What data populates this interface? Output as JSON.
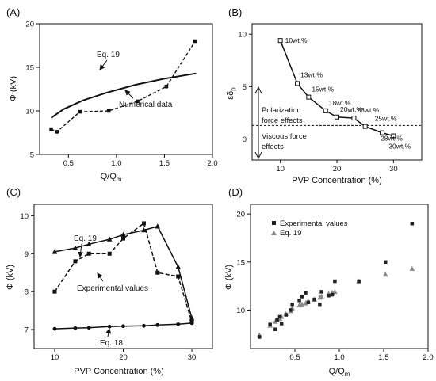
{
  "chart_data": [
    {
      "panel": "(A)",
      "type": "line",
      "xlabel": "Q/Q_m",
      "xlabel_main": "Q/Q",
      "xlabel_sub": "m",
      "ylabel": "Φ (kV)",
      "xlim": [
        0.2,
        2.0
      ],
      "ylim": [
        5,
        20
      ],
      "xticks": [
        0.5,
        1.0,
        1.5,
        2.0
      ],
      "yticks": [
        5,
        10,
        15,
        20
      ],
      "tick_labels_x": [
        "0.5",
        "1.0",
        "1.5",
        "2.0"
      ],
      "tick_labels_y": [
        "5",
        "10",
        "15",
        "20"
      ],
      "series": [
        {
          "name": "Eq. 19",
          "style": "solid",
          "x": [
            0.32,
            0.45,
            0.65,
            0.9,
            1.2,
            1.5,
            1.83
          ],
          "y": [
            9.2,
            10.2,
            11.2,
            12.1,
            13.0,
            13.7,
            14.3
          ]
        },
        {
          "name": "Numerical data",
          "style": "dashed-square",
          "x": [
            0.32,
            0.38,
            0.62,
            0.92,
            1.22,
            1.52,
            1.82
          ],
          "y": [
            7.9,
            7.6,
            9.9,
            10.0,
            11.1,
            12.8,
            18.0
          ]
        }
      ]
    },
    {
      "panel": "(B)",
      "type": "line",
      "xlabel": "PVP Concentration (%)",
      "ylabel": "εδ_p",
      "ylabel_main": "εδ",
      "ylabel_sub": "p",
      "xlim": [
        5,
        35
      ],
      "ylim": [
        -2,
        11
      ],
      "xticks": [
        10,
        20,
        30
      ],
      "yticks": [
        0,
        5,
        10
      ],
      "tick_labels_x": [
        "10",
        "20",
        "30"
      ],
      "tick_labels_y": [
        "0",
        "5",
        "10"
      ],
      "threshold": 1.3,
      "series": [
        {
          "name": "",
          "x": [
            10,
            13,
            15,
            18,
            20,
            23,
            25,
            28,
            30
          ],
          "y": [
            9.4,
            5.3,
            4.0,
            2.7,
            2.1,
            2.0,
            1.2,
            0.6,
            0.3
          ]
        }
      ],
      "point_labels": [
        "10wt.%",
        "13wt.%",
        "15wt.%",
        "18wt.%",
        "20wt.%",
        "23wt.%",
        "25wt.%",
        "28wt.%",
        "30wt.%"
      ],
      "annotations": [
        "Polarization force effects",
        "Viscous force effects"
      ],
      "annotation_lines": {
        "polarization": [
          "Polarization",
          "force effects"
        ],
        "viscous": [
          "Viscous force",
          "effects"
        ]
      }
    },
    {
      "panel": "(C)",
      "type": "line",
      "xlabel": "PVP Concentration (%)",
      "ylabel": "Φ (kV)",
      "xlim": [
        7,
        33
      ],
      "ylim": [
        6.5,
        10.3
      ],
      "xticks": [
        10,
        20,
        30
      ],
      "yticks": [
        7,
        8,
        9,
        10
      ],
      "tick_labels_x": [
        "10",
        "20",
        "30"
      ],
      "tick_labels_y": [
        "7",
        "8",
        "9",
        "10"
      ],
      "series": [
        {
          "name": "Eq. 19",
          "marker": "triangle",
          "x": [
            10,
            13,
            15,
            18,
            20,
            23,
            25,
            28,
            30
          ],
          "y": [
            9.05,
            9.15,
            9.25,
            9.38,
            9.5,
            9.62,
            9.72,
            8.65,
            7.3
          ]
        },
        {
          "name": "Experimental values",
          "marker": "square",
          "x": [
            10,
            13,
            15,
            18,
            20,
            23,
            25,
            28,
            30
          ],
          "y": [
            8.0,
            8.8,
            9.0,
            9.0,
            9.4,
            9.8,
            8.5,
            8.4,
            7.2
          ]
        },
        {
          "name": "Eq. 18",
          "marker": "circle",
          "x": [
            10,
            13,
            15,
            18,
            20,
            23,
            25,
            28,
            30
          ],
          "y": [
            7.02,
            7.04,
            7.05,
            7.08,
            7.09,
            7.1,
            7.12,
            7.14,
            7.17
          ]
        }
      ]
    },
    {
      "panel": "(D)",
      "type": "scatter",
      "xlabel": "Q/Q_m",
      "xlabel_main": "Q/Q",
      "xlabel_sub": "m",
      "ylabel": "Φ (kV)",
      "xlim": [
        0.0,
        2.0
      ],
      "ylim": [
        6,
        21
      ],
      "xticks": [
        0.5,
        1.0,
        1.5,
        2.0
      ],
      "yticks": [
        10,
        15,
        20
      ],
      "tick_labels_x": [
        "0.5",
        "1.0",
        "1.5",
        "2.0"
      ],
      "tick_labels_y": [
        "10",
        "15",
        "20"
      ],
      "legend_placement": "top-left",
      "series": [
        {
          "name": "Experimental values",
          "marker": "square",
          "color": "#222222",
          "points": [
            [
              0.1,
              7.2
            ],
            [
              0.22,
              8.5
            ],
            [
              0.28,
              8.0
            ],
            [
              0.3,
              9.0
            ],
            [
              0.33,
              9.3
            ],
            [
              0.35,
              8.6
            ],
            [
              0.4,
              9.5
            ],
            [
              0.45,
              10.0
            ],
            [
              0.47,
              10.6
            ],
            [
              0.55,
              11.0
            ],
            [
              0.58,
              11.4
            ],
            [
              0.62,
              11.8
            ],
            [
              0.65,
              10.8
            ],
            [
              0.72,
              11.1
            ],
            [
              0.78,
              10.6
            ],
            [
              0.8,
              11.9
            ],
            [
              0.88,
              11.5
            ],
            [
              0.92,
              11.6
            ],
            [
              0.95,
              13.0
            ],
            [
              1.22,
              13.0
            ],
            [
              1.52,
              15.0
            ],
            [
              1.82,
              19.0
            ]
          ]
        },
        {
          "name": "Eq. 19",
          "marker": "triangle",
          "color": "#8c8c8c",
          "points": [
            [
              0.1,
              7.4
            ],
            [
              0.22,
              8.4
            ],
            [
              0.28,
              8.8
            ],
            [
              0.3,
              9.0
            ],
            [
              0.33,
              9.1
            ],
            [
              0.35,
              9.3
            ],
            [
              0.4,
              9.6
            ],
            [
              0.45,
              9.9
            ],
            [
              0.47,
              10.2
            ],
            [
              0.55,
              10.5
            ],
            [
              0.58,
              10.6
            ],
            [
              0.62,
              10.7
            ],
            [
              0.65,
              10.9
            ],
            [
              0.72,
              11.1
            ],
            [
              0.78,
              11.3
            ],
            [
              0.8,
              11.4
            ],
            [
              0.88,
              11.7
            ],
            [
              0.92,
              11.8
            ],
            [
              0.95,
              11.9
            ],
            [
              1.22,
              13.0
            ],
            [
              1.52,
              13.7
            ],
            [
              1.82,
              14.3
            ]
          ]
        }
      ]
    }
  ]
}
